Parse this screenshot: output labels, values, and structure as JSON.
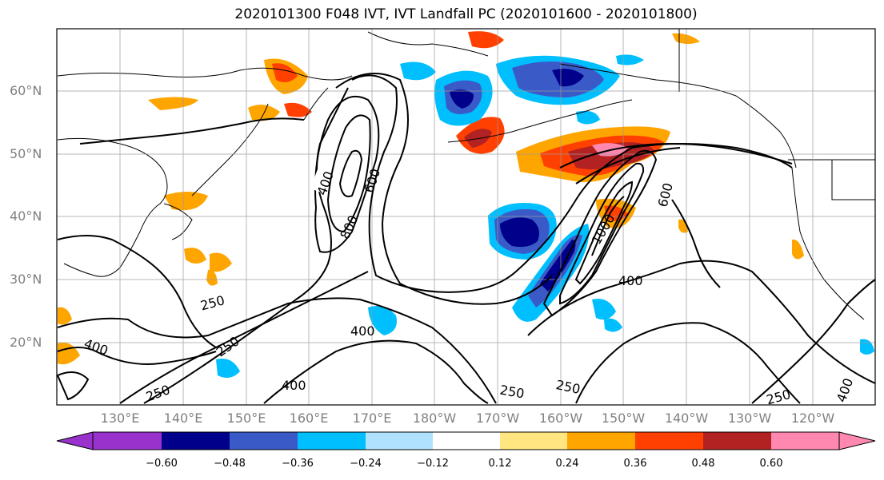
{
  "title": "2020101300 F048 IVT, IVT Landfall PC (2020101600 - 2020101800)",
  "lat_labels": [
    "60°N",
    "50°N",
    "40°N",
    "30°N",
    "20°N"
  ],
  "lon_labels": [
    "130°E",
    "140°E",
    "150°E",
    "160°E",
    "170°E",
    "180°W",
    "170°W",
    "160°W",
    "150°W",
    "140°W",
    "130°W",
    "120°W"
  ],
  "colorbar": {
    "tick_labels": [
      "−0.60",
      "−0.48",
      "−0.36",
      "−0.24",
      "−0.12",
      "0.12",
      "0.24",
      "0.36",
      "0.48",
      "0.60"
    ],
    "colors": [
      "#9932cc",
      "#00008b",
      "#3a5bc7",
      "#00bfff",
      "#b0e2ff",
      "#ffffff",
      "#ffe680",
      "#ffa500",
      "#ff4000",
      "#b22222",
      "#ff88b0"
    ]
  },
  "contour_labels": [
    "400",
    "600",
    "800",
    "1000",
    "600",
    "400",
    "250",
    "250",
    "400",
    "400",
    "400",
    "250",
    "250",
    "250",
    "400"
  ],
  "map": {
    "lat_range": [
      10,
      70
    ],
    "lon_range": [
      120,
      250
    ],
    "grid": true,
    "contour_levels": [
      250,
      400,
      600,
      800,
      1000
    ]
  }
}
